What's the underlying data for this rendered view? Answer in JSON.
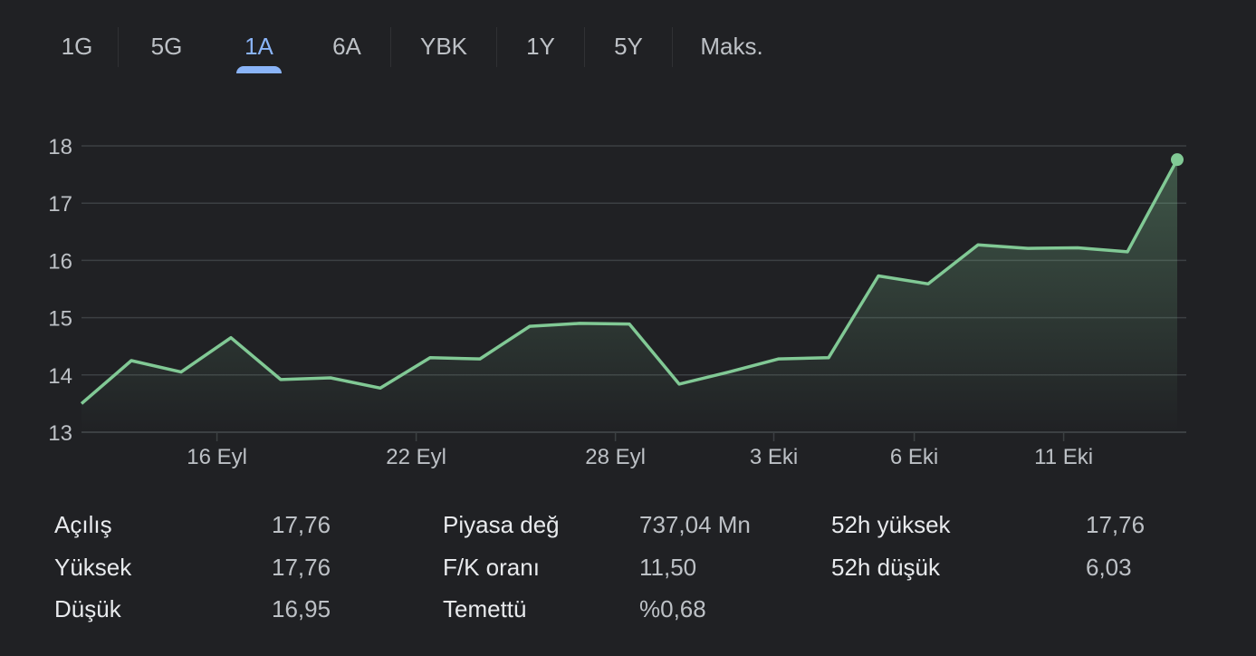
{
  "tabs": [
    {
      "label": "1G",
      "active": false
    },
    {
      "label": "5G",
      "active": false
    },
    {
      "label": "1A",
      "active": true
    },
    {
      "label": "6A",
      "active": false
    },
    {
      "label": "YBK",
      "active": false
    },
    {
      "label": "1Y",
      "active": false
    },
    {
      "label": "5Y",
      "active": false
    },
    {
      "label": "Maks.",
      "active": false
    }
  ],
  "colors": {
    "background": "#202124",
    "line": "#81c995",
    "active_tab": "#8ab4f8",
    "grid": "#3c4043",
    "text": "#bdc1c6"
  },
  "chart_data": {
    "type": "area",
    "ylim": [
      13,
      18
    ],
    "y_ticks": [
      "13",
      "14",
      "15",
      "16",
      "17",
      "18"
    ],
    "x_ticks": [
      {
        "label": "16 Eyl",
        "index": 2.72
      },
      {
        "label": "22 Eyl",
        "index": 6.72
      },
      {
        "label": "28 Eyl",
        "index": 10.72
      },
      {
        "label": "3 Eki",
        "index": 13.9
      },
      {
        "label": "6 Eki",
        "index": 16.72
      },
      {
        "label": "11 Eki",
        "index": 19.72
      }
    ],
    "series": [
      {
        "values": [
          13.5,
          14.25,
          14.05,
          14.65,
          13.92,
          13.95,
          13.77,
          14.3,
          14.28,
          14.85,
          14.9,
          14.89,
          13.84,
          14.05,
          14.28,
          14.3,
          15.73,
          15.59,
          16.27,
          16.21,
          16.22,
          16.15,
          17.76
        ]
      }
    ],
    "grid": true,
    "legend": "none"
  },
  "stats": [
    {
      "label": "Açılış",
      "value": "17,76"
    },
    {
      "label": "Yüksek",
      "value": "17,76"
    },
    {
      "label": "Düşük",
      "value": "16,95"
    },
    {
      "label": "Piyasa değ",
      "value": "737,04 Mn"
    },
    {
      "label": "F/K oranı",
      "value": "11,50"
    },
    {
      "label": "Temettü",
      "value": "%0,68"
    },
    {
      "label": "52h yüksek",
      "value": "17,76"
    },
    {
      "label": "52h düşük",
      "value": "6,03"
    }
  ]
}
